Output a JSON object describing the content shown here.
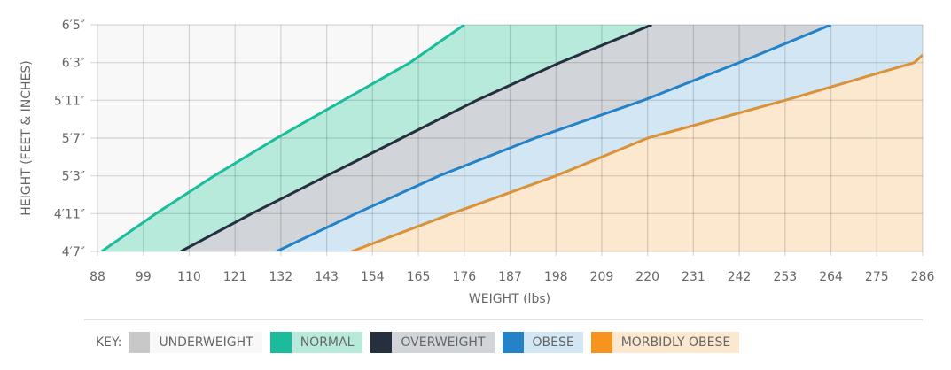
{
  "chart_data": {
    "type": "area",
    "xlabel": "WEIGHT (lbs)",
    "ylabel": "HEIGHT (FEET & INCHES)",
    "xlim": [
      88,
      286
    ],
    "x_ticks": [
      "88",
      "99",
      "110",
      "121",
      "132",
      "143",
      "154",
      "165",
      "176",
      "187",
      "198",
      "209",
      "220",
      "231",
      "242",
      "253",
      "264",
      "275",
      "286"
    ],
    "y_ticks": [
      "4′7″",
      "4′11″",
      "5′3″",
      "5′7″",
      "5′11″",
      "6′3″",
      "6′5″"
    ],
    "y_tick_inches": [
      55,
      59,
      63,
      67,
      71,
      75,
      77
    ],
    "grid": true,
    "background_color": "#f8f8f8",
    "boundaries": [
      {
        "key": "normal",
        "line_color": "#1abc9c",
        "fill_color": "#b8eadc",
        "points": [
          [
            89,
            55
          ],
          [
            102,
            59
          ],
          [
            116,
            63
          ],
          [
            131,
            67
          ],
          [
            147,
            71
          ],
          [
            163,
            75
          ],
          [
            176,
            77
          ]
        ]
      },
      {
        "key": "overweight",
        "line_color": "#243040",
        "fill_color": "#d1d5d9",
        "points": [
          [
            108,
            55
          ],
          [
            125,
            59
          ],
          [
            143,
            63
          ],
          [
            161,
            67
          ],
          [
            179,
            71
          ],
          [
            199,
            75
          ],
          [
            221,
            77
          ]
        ]
      },
      {
        "key": "obese",
        "line_color": "#2382c8",
        "fill_color": "#d3e6f4",
        "points": [
          [
            131,
            55
          ],
          [
            150,
            59
          ],
          [
            170,
            63
          ],
          [
            193,
            67
          ],
          [
            219,
            71
          ],
          [
            242,
            75
          ],
          [
            264,
            77
          ]
        ]
      },
      {
        "key": "morbidly_obese",
        "line_color": "#d9923a",
        "fill_color": "#fce7cf",
        "points": [
          [
            149,
            55
          ],
          [
            173,
            59
          ],
          [
            198,
            63
          ],
          [
            220,
            67
          ],
          [
            253,
            71
          ],
          [
            284,
            75
          ],
          [
            286,
            75.4
          ]
        ]
      }
    ]
  },
  "legend": {
    "key_label": "KEY:",
    "items": [
      {
        "label": "UNDERWEIGHT",
        "swatch": "#c8c8c8",
        "bg": "#f8f8f8"
      },
      {
        "label": "NORMAL",
        "swatch": "#1abc9c",
        "bg": "#b8eadc"
      },
      {
        "label": "OVERWEIGHT",
        "swatch": "#243040",
        "bg": "#d1d5d9"
      },
      {
        "label": "OBESE",
        "swatch": "#2382c8",
        "bg": "#d3e6f4"
      },
      {
        "label": "MORBIDLY OBESE",
        "swatch": "#f7941d",
        "bg": "#fce7cf"
      }
    ]
  }
}
